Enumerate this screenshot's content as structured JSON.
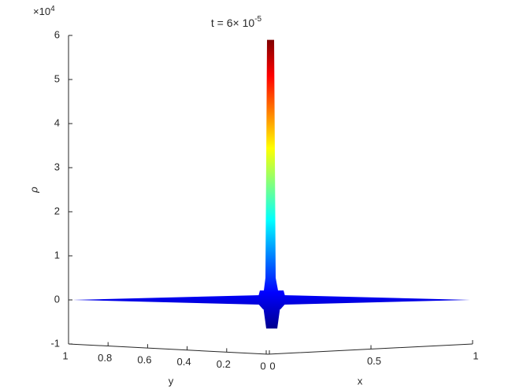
{
  "chart_data": {
    "type": "surface",
    "title": {
      "text": "t = 6× 10",
      "exponent": "-5"
    },
    "z_multiplier": {
      "text": "×10",
      "exponent": "4"
    },
    "zlabel": "ρ",
    "xlabel": "x",
    "ylabel": "y",
    "zlim": [
      -1,
      6
    ],
    "zticks": [
      -1,
      0,
      1,
      2,
      3,
      4,
      5,
      6
    ],
    "xlim": [
      0,
      1
    ],
    "xticks": [
      0,
      0.5,
      1
    ],
    "ylim": [
      0,
      1
    ],
    "yticks": [
      1,
      0.8,
      0.6,
      0.4,
      0.2,
      0
    ],
    "peak": 5.9,
    "trough": -0.65,
    "floor": 0,
    "colormap": "jet"
  }
}
